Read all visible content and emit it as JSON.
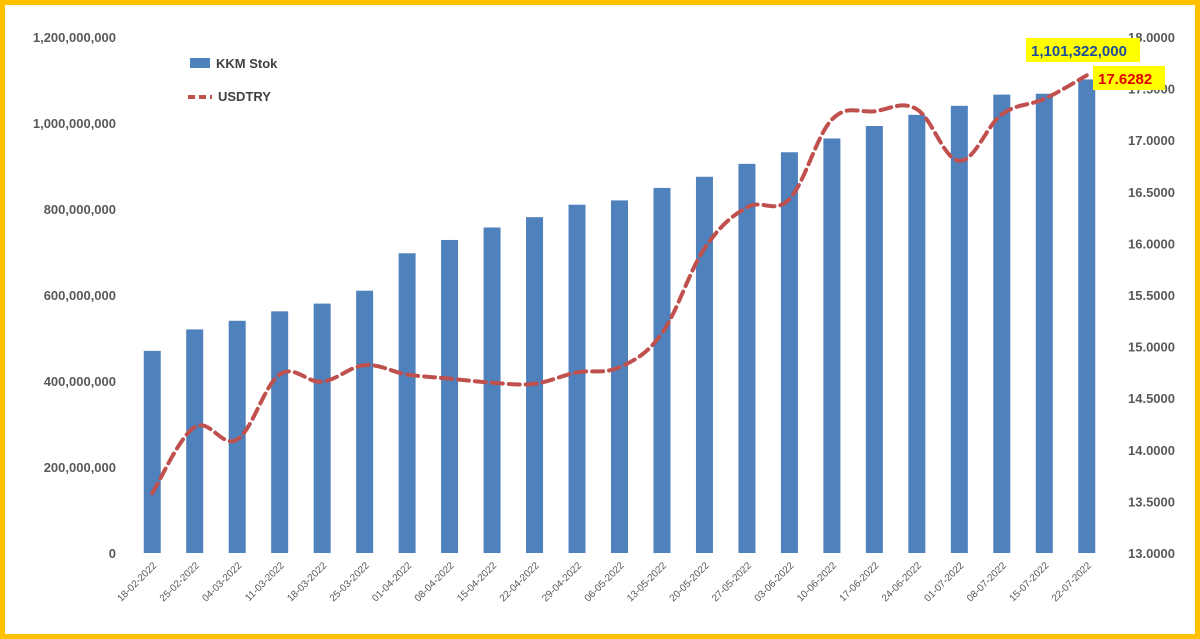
{
  "chart_data": {
    "type": "bar",
    "categories": [
      "18-02-2022",
      "25-02-2022",
      "04-03-2022",
      "11-03-2022",
      "18-03-2022",
      "25-03-2022",
      "01-04-2022",
      "08-04-2022",
      "15-04-2022",
      "22-04-2022",
      "29-04-2022",
      "06-05-2022",
      "13-05-2022",
      "20-05-2022",
      "27-05-2022",
      "03-06-2022",
      "10-06-2022",
      "17-06-2022",
      "24-06-2022",
      "01-07-2022",
      "08-07-2022",
      "15-07-2022",
      "22-07-2022"
    ],
    "series": [
      {
        "name": "KKM Stok",
        "type": "bar",
        "axis": "left",
        "color": "#4f81bd",
        "values": [
          470000000,
          520000000,
          540000000,
          562000000,
          580000000,
          610000000,
          697000000,
          728000000,
          757000000,
          781000000,
          810000000,
          820000000,
          849000000,
          875000000,
          905000000,
          932000000,
          964000000,
          993000000,
          1019000000,
          1040000000,
          1066000000,
          1068000000,
          1101322000
        ]
      },
      {
        "name": "USDTRY",
        "type": "line",
        "axis": "right",
        "color": "#c0504d",
        "dash": "dashed",
        "values": [
          13.58,
          14.22,
          14.1,
          14.73,
          14.66,
          14.82,
          14.73,
          14.69,
          14.65,
          14.64,
          14.75,
          14.8,
          15.13,
          15.95,
          16.35,
          16.43,
          17.2,
          17.28,
          17.3,
          16.8,
          17.25,
          17.4,
          17.6282
        ]
      }
    ],
    "y_left": {
      "min": 0,
      "max": 1200000000,
      "step": 200000000,
      "tick_labels": [
        "0",
        "200,000,000",
        "400,000,000",
        "600,000,000",
        "800,000,000",
        "1,000,000,000",
        "1,200,000,000"
      ]
    },
    "y_right": {
      "min": 13.0,
      "max": 18.0,
      "step": 0.5,
      "tick_labels": [
        "13.0000",
        "13.5000",
        "14.0000",
        "14.5000",
        "15.0000",
        "15.5000",
        "16.0000",
        "16.5000",
        "17.0000",
        "17.5000",
        "18.0000"
      ]
    },
    "legend": {
      "position": "top-left",
      "items": [
        "KKM Stok",
        "USDTRY"
      ]
    },
    "annotations": [
      {
        "series": "KKM Stok",
        "text": "1,101,322,000",
        "background": "#ffff00",
        "color": "#1f4e9c"
      },
      {
        "series": "USDTRY",
        "text": "17.6282",
        "background": "#ffff00",
        "color": "#e00000"
      }
    ],
    "grid": false,
    "title": "",
    "xlabel": "",
    "ylabel": ""
  },
  "colors": {
    "border": "#ffc000",
    "bar": "#4f81bd",
    "line": "#c0504d",
    "callout_bg": "#ffff00"
  }
}
